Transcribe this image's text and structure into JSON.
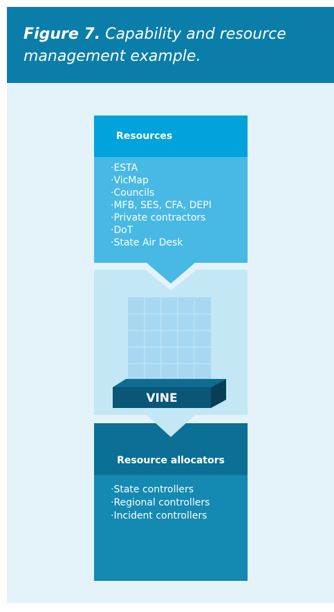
{
  "header": {
    "figure_label": "Figure 7.",
    "caption_lines": [
      "Capability and resource",
      "management example."
    ]
  },
  "resources": {
    "title": "Resources",
    "items": [
      "·ESTA",
      "·VicMap",
      "·Councils",
      "·MFB, SES, CFA, DEPI",
      "·Private contractors",
      "·DoT",
      "·State Air Desk"
    ]
  },
  "system": {
    "label": "VINE"
  },
  "allocators": {
    "title": "Resource allocators",
    "items": [
      "·State controllers",
      "·Regional controllers",
      "·Incident controllers"
    ]
  }
}
